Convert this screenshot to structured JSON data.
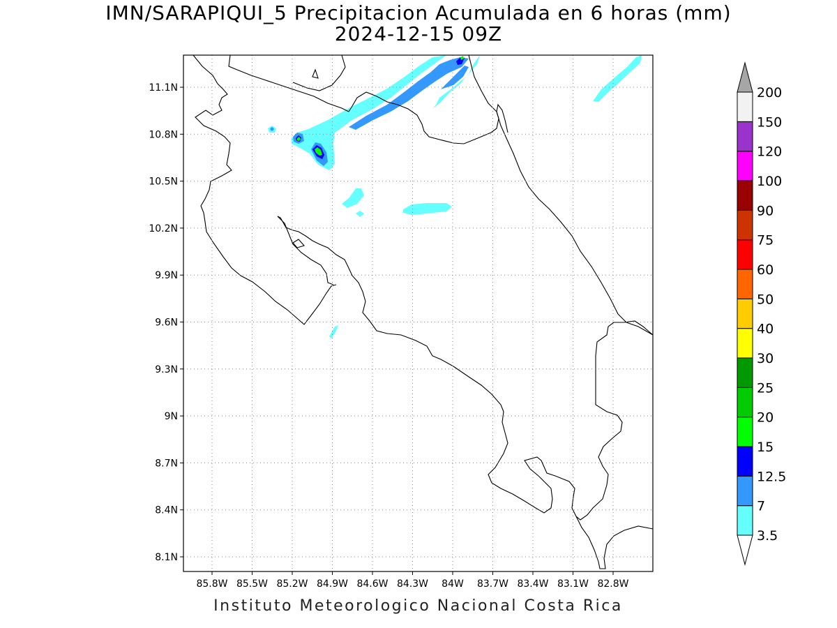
{
  "header": {
    "title_line1": "IMN/SARAPIQUI_5 Precipitacion Acumulada en 6 horas (mm)",
    "title_line2": "2024-12-15 09Z"
  },
  "axes": {
    "lat_ticks": [
      "11.1N",
      "10.8N",
      "10.5N",
      "10.2N",
      "9.9N",
      "9.6N",
      "9.3N",
      "9N",
      "8.7N",
      "8.4N",
      "8.1N"
    ],
    "lon_ticks": [
      "85.8W",
      "85.5W",
      "85.2W",
      "84.9W",
      "84.6W",
      "84.3W",
      "84W",
      "83.7W",
      "83.4W",
      "83.1W",
      "82.8W"
    ],
    "grid": true
  },
  "legend": {
    "levels": [
      "3.5",
      "7",
      "12.5",
      "15",
      "20",
      "25",
      "30",
      "40",
      "50",
      "60",
      "75",
      "90",
      "100",
      "120",
      "150",
      "200"
    ],
    "colors": [
      "#66ffff",
      "#3399ff",
      "#0000ff",
      "#00ff00",
      "#00cc00",
      "#009900",
      "#ffff00",
      "#ffcc00",
      "#ff6600",
      "#ff0000",
      "#cc3300",
      "#990000",
      "#ff00ff",
      "#9933cc",
      "#f2f2f2",
      "#a6a6a6"
    ]
  },
  "footer": {
    "credit": "Instituto Meteorologico Nacional Costa Rica"
  }
}
